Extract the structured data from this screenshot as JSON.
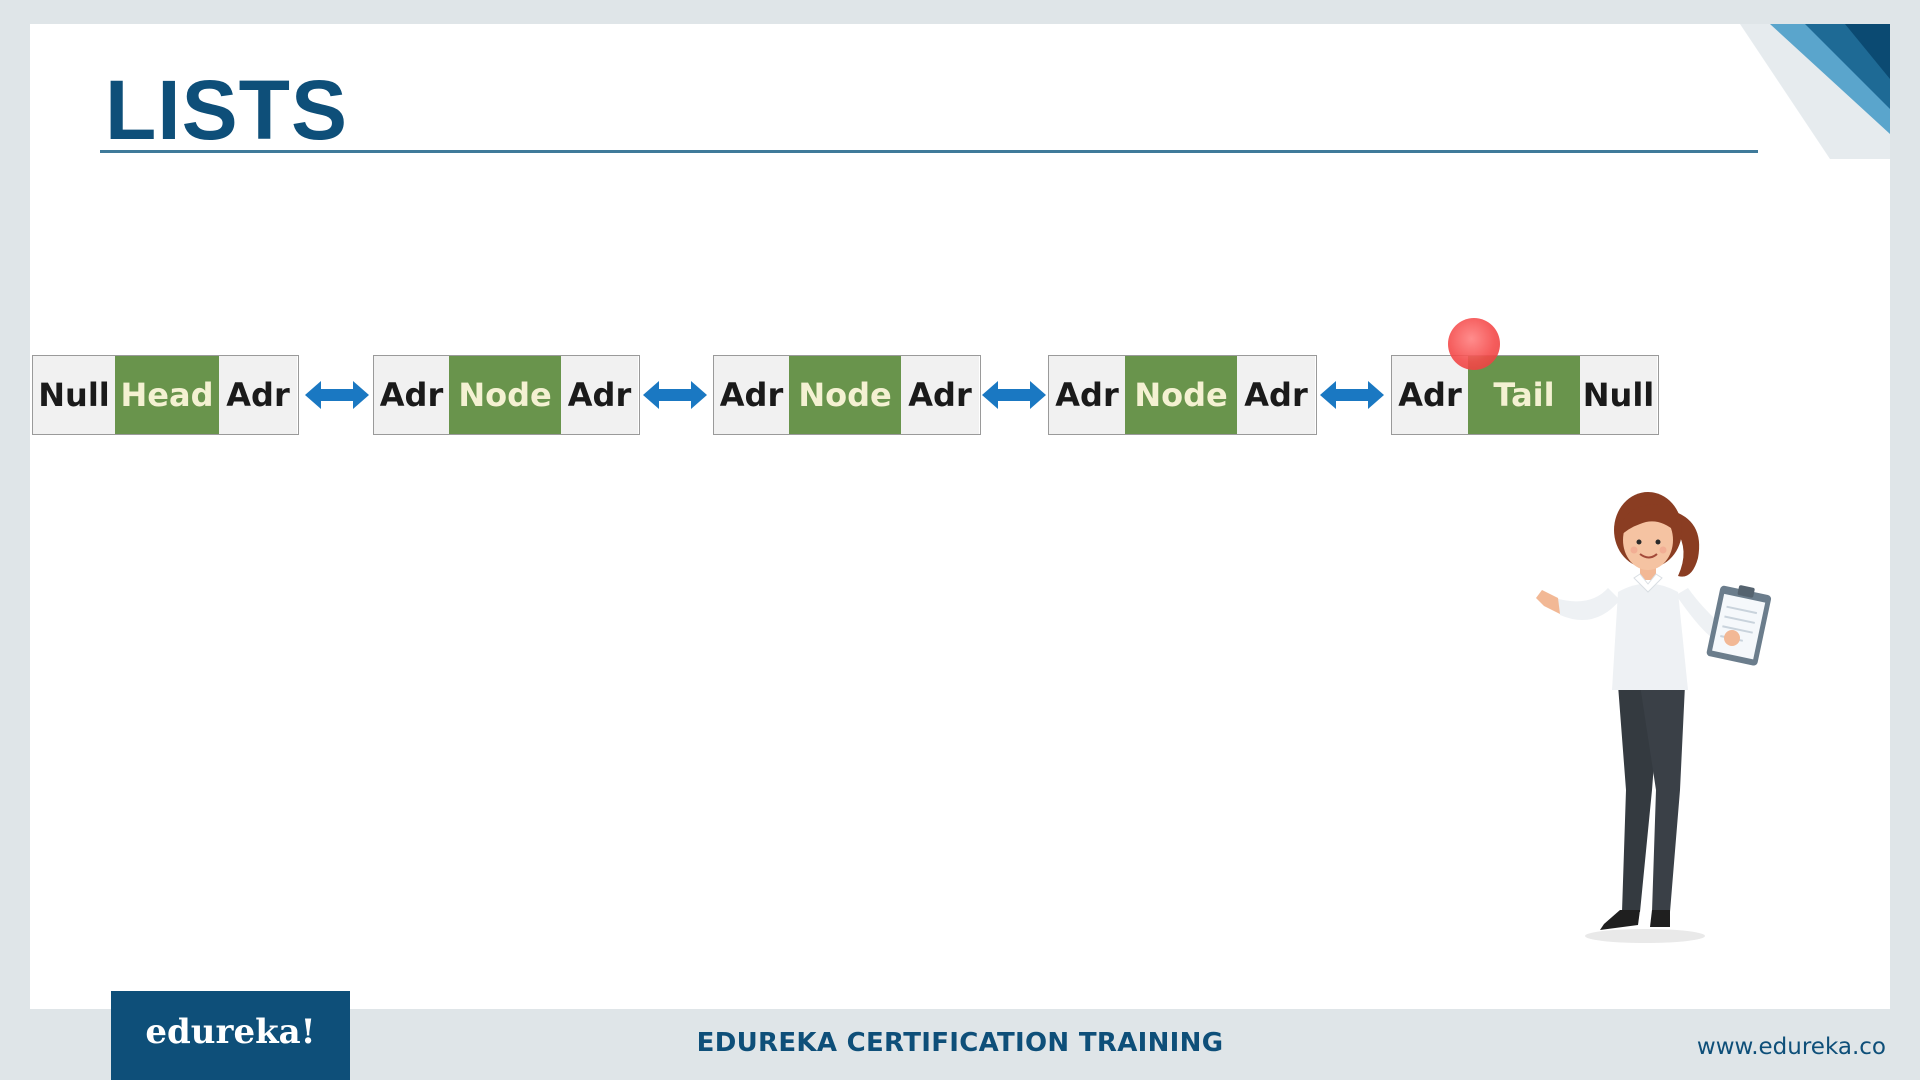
{
  "slide": {
    "title": "LISTS"
  },
  "linked_list": {
    "nodes": [
      {
        "left": "Null",
        "value": "Head",
        "right": "Adr"
      },
      {
        "left": "Adr",
        "value": "Node",
        "right": "Adr"
      },
      {
        "left": "Adr",
        "value": "Node",
        "right": "Adr"
      },
      {
        "left": "Adr",
        "value": "Node",
        "right": "Adr"
      },
      {
        "left": "Adr",
        "value": "Tail",
        "right": "Null"
      }
    ],
    "connector": "double-arrow-icon"
  },
  "colors": {
    "brand": "#0e4f79",
    "node_value_bg": "#69944c",
    "node_value_text": "#f4f1d2",
    "pointer_cell_bg": "#f1f1f1",
    "arrow": "#1a78c2",
    "pointer_dot": "#f44a4a"
  },
  "footer": {
    "logo_text": "edureka!",
    "center_text": "EDUREKA CERTIFICATION TRAINING",
    "website": "www.edureka.co"
  }
}
